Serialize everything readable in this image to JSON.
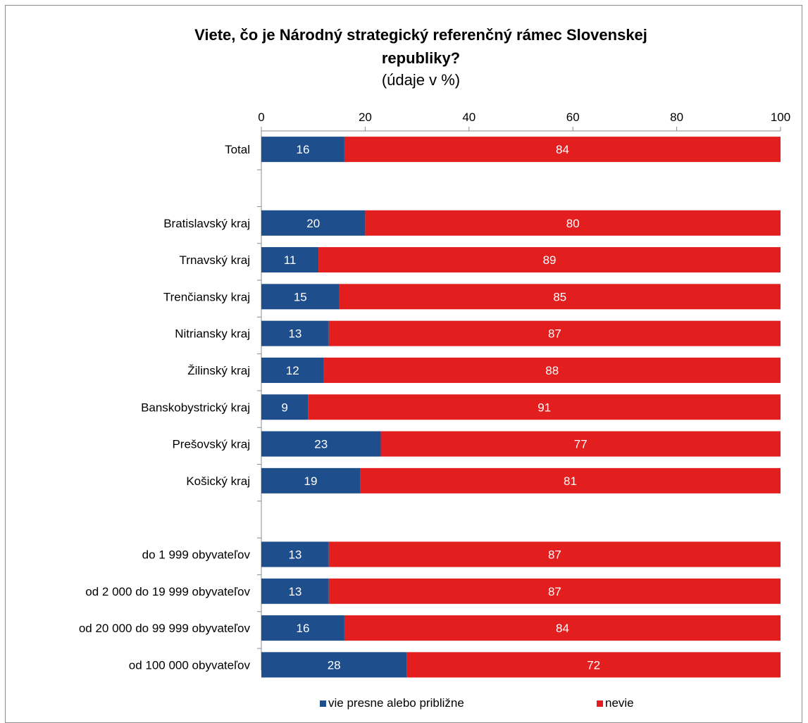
{
  "chart_data": {
    "type": "bar",
    "stacked": true,
    "orientation": "horizontal",
    "title_line1": "Viete, čo je Národný strategický referenčný rámec Slovenskej",
    "title_line2": "republiky?",
    "subtitle": "(údaje v %)",
    "xlim": [
      0,
      100
    ],
    "xticks": [
      0,
      20,
      40,
      60,
      80,
      100
    ],
    "legend_position": "bottom",
    "categories": [
      "Total",
      "",
      "Bratislavský kraj",
      "Trnavský kraj",
      "Trenčiansky kraj",
      "Nitriansky kraj",
      "Žilinský kraj",
      "Banskobystrický kraj",
      "Prešovský kraj",
      "Košický kraj",
      "",
      "do 1 999 obyvateľov",
      "od 2 000 do 19 999 obyvateľov",
      "od 20 000 do 99 999 obyvateľov",
      "od 100 000 obyvateľov"
    ],
    "series": [
      {
        "name": "vie presne alebo približne",
        "color": "#1f4e8c",
        "values": [
          16,
          null,
          20,
          11,
          15,
          13,
          12,
          9,
          23,
          19,
          null,
          13,
          13,
          16,
          28
        ]
      },
      {
        "name": "nevie",
        "color": "#e31e1e",
        "values": [
          84,
          null,
          80,
          89,
          85,
          87,
          88,
          91,
          77,
          81,
          null,
          87,
          87,
          84,
          72
        ]
      }
    ],
    "bar_positions": [
      16,
      15.77,
      20,
      11,
      15.2,
      13,
      12,
      9,
      23.5,
      19.5,
      null,
      13.3,
      12.5,
      16.5,
      27.7
    ]
  }
}
